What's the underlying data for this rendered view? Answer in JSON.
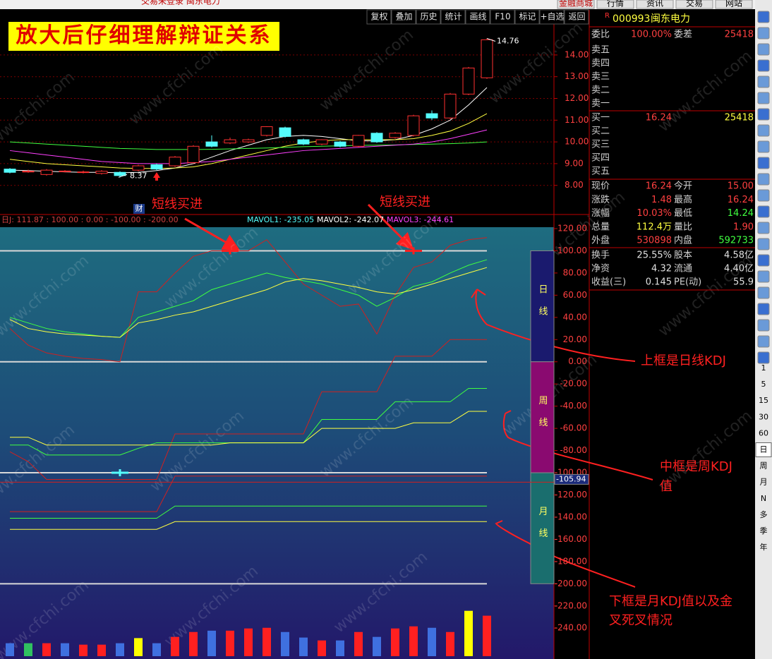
{
  "window_title": "交易未登录  闽东电力",
  "top_menu": [
    "金融商城",
    "行情",
    "资讯",
    "交易",
    "网站"
  ],
  "toolbar": [
    "复权",
    "叠加",
    "历史",
    "统计",
    "画线",
    "F10",
    "标记",
    "+自选",
    "返回"
  ],
  "banner": "放大后仔细理解辩证关系",
  "watermark": "www.cfchi.com",
  "price_chart": {
    "type": "candlestick",
    "ylim": [
      6.79,
      15.36
    ],
    "yticks": [
      {
        "value": 14,
        "label": "14.00"
      },
      {
        "value": 13,
        "label": "13.00"
      },
      {
        "value": 12,
        "label": "12.00"
      },
      {
        "value": 11,
        "label": "11.00"
      },
      {
        "value": 10,
        "label": "10.00"
      },
      {
        "value": 9,
        "label": "9.00"
      },
      {
        "value": 8,
        "label": "8.00"
      }
    ],
    "grid": true,
    "up_color": "#ff3030",
    "down_color": "#54fcfc",
    "candles": [
      {
        "open": 8.75,
        "close": 8.6,
        "high": 8.8,
        "low": 8.55
      },
      {
        "open": 8.65,
        "close": 8.65,
        "high": 8.72,
        "low": 8.58
      },
      {
        "open": 8.5,
        "close": 8.7,
        "high": 8.75,
        "low": 8.45
      },
      {
        "open": 8.65,
        "close": 8.66,
        "high": 8.7,
        "low": 8.6
      },
      {
        "open": 8.6,
        "close": 8.62,
        "high": 8.68,
        "low": 8.55
      },
      {
        "open": 8.55,
        "close": 8.65,
        "high": 8.7,
        "low": 8.5
      },
      {
        "open": 8.6,
        "close": 8.45,
        "high": 8.65,
        "low": 8.37
      },
      {
        "open": 8.7,
        "close": 8.9,
        "high": 8.95,
        "low": 8.65
      },
      {
        "open": 8.95,
        "close": 8.75,
        "high": 9.0,
        "low": 8.7
      },
      {
        "open": 8.9,
        "close": 9.3,
        "high": 9.35,
        "low": 8.85
      },
      {
        "open": 9.05,
        "close": 9.8,
        "high": 9.85,
        "low": 9.0
      },
      {
        "open": 10.0,
        "close": 9.8,
        "high": 10.3,
        "low": 9.75
      },
      {
        "open": 9.95,
        "close": 10.1,
        "high": 10.2,
        "low": 9.9
      },
      {
        "open": 10.0,
        "close": 10.1,
        "high": 10.15,
        "low": 9.95
      },
      {
        "open": 10.3,
        "close": 10.7,
        "high": 10.72,
        "low": 10.25
      },
      {
        "open": 10.65,
        "close": 10.25,
        "high": 10.7,
        "low": 10.2
      },
      {
        "open": 10.1,
        "close": 9.9,
        "high": 10.15,
        "low": 9.85
      },
      {
        "open": 9.9,
        "close": 10.1,
        "high": 10.12,
        "low": 9.85
      },
      {
        "open": 10.0,
        "close": 9.8,
        "high": 10.05,
        "low": 9.75
      },
      {
        "open": 9.8,
        "close": 10.3,
        "high": 10.32,
        "low": 9.75
      },
      {
        "open": 10.4,
        "close": 10.0,
        "high": 10.45,
        "low": 9.95
      },
      {
        "open": 10.2,
        "close": 10.4,
        "high": 10.45,
        "low": 10.15
      },
      {
        "open": 10.3,
        "close": 11.2,
        "high": 11.25,
        "low": 10.25
      },
      {
        "open": 11.3,
        "close": 11.1,
        "high": 11.45,
        "low": 11.0
      },
      {
        "open": 11.1,
        "close": 12.2,
        "high": 12.25,
        "low": 11.05
      },
      {
        "open": 12.2,
        "close": 13.4,
        "high": 13.45,
        "low": 12.15
      },
      {
        "open": 12.95,
        "close": 14.7,
        "high": 14.76,
        "low": 12.9
      }
    ],
    "ma": [
      {
        "color": "#ffffff",
        "values": [
          8.7,
          8.68,
          8.65,
          8.62,
          8.6,
          8.6,
          8.58,
          8.6,
          8.68,
          8.8,
          9.0,
          9.3,
          9.6,
          9.85,
          10.1,
          10.25,
          10.3,
          10.25,
          10.15,
          10.05,
          10.05,
          10.1,
          10.3,
          10.6,
          11.0,
          11.7,
          12.5
        ]
      },
      {
        "color": "#ffff40",
        "values": [
          9.2,
          9.1,
          9.0,
          8.95,
          8.9,
          8.85,
          8.8,
          8.78,
          8.78,
          8.8,
          8.85,
          9.0,
          9.2,
          9.4,
          9.6,
          9.8,
          9.95,
          10.05,
          10.1,
          10.1,
          10.1,
          10.1,
          10.15,
          10.3,
          10.5,
          10.85,
          11.3
        ]
      },
      {
        "color": "#40ff40",
        "values": [
          10.0,
          9.95,
          9.9,
          9.85,
          9.8,
          9.75,
          9.7,
          9.68,
          9.65,
          9.65,
          9.65,
          9.66,
          9.68,
          9.7,
          9.72,
          9.75,
          9.78,
          9.8,
          9.82,
          9.84,
          9.85,
          9.86,
          9.88,
          9.9,
          9.92,
          9.95,
          10.0
        ]
      },
      {
        "color": "#ff40ff",
        "values": [
          9.6,
          9.5,
          9.4,
          9.3,
          9.2,
          9.1,
          9.05,
          9.0,
          9.0,
          9.0,
          9.05,
          9.1,
          9.2,
          9.3,
          9.4,
          9.5,
          9.6,
          9.65,
          9.7,
          9.75,
          9.8,
          9.85,
          9.9,
          10.0,
          10.15,
          10.35,
          10.55
        ]
      }
    ],
    "high_marker": {
      "index": 26,
      "value": 14.76
    },
    "low_marker": {
      "index": 6,
      "value": 8.37
    },
    "finance_marker": "财"
  },
  "indicator_chart": {
    "type": "kdj",
    "ylim": [
      -265.28,
      132.08
    ],
    "yticks": [
      {
        "value": 120,
        "label": "120.00"
      },
      {
        "value": 100,
        "label": "100.00"
      },
      {
        "value": 80,
        "label": "80.00"
      },
      {
        "value": 60,
        "label": "60.00"
      },
      {
        "value": 40,
        "label": "40.00"
      },
      {
        "value": 20,
        "label": "20.00"
      },
      {
        "value": 0,
        "label": "0.00"
      },
      {
        "value": -20,
        "label": "-20.00"
      },
      {
        "value": -40,
        "label": "-40.00"
      },
      {
        "value": -60,
        "label": "-60.00"
      },
      {
        "value": -80,
        "label": "-80.00"
      },
      {
        "value": -100,
        "label": "-100.00"
      },
      {
        "value": -120,
        "label": "-120.00"
      },
      {
        "value": -140,
        "label": "-140.00"
      },
      {
        "value": -160,
        "label": "-160.00"
      },
      {
        "value": -180,
        "label": "-180.00"
      },
      {
        "value": -200,
        "label": "-200.00"
      },
      {
        "value": -220,
        "label": "-220.00"
      },
      {
        "value": -240,
        "label": "-240.00"
      }
    ],
    "reference_lines": [
      100,
      0,
      -100,
      -200
    ],
    "current_value": -105.94,
    "legend": "日J: 111.87 : 100.00 : 0.00 : -100.00 : -200.00",
    "mavol": [
      {
        "label": "MAVOL1: -235.05",
        "color": "#54fcfc"
      },
      {
        "label": "MAVOL2: -242.07",
        "color": "#ffffff"
      },
      {
        "label": "MAVOL3: -244.61",
        "color": "#ff40ff"
      }
    ],
    "frames": [
      {
        "label": "日线",
        "color": "#1a1a6e"
      },
      {
        "label": "周线",
        "color": "#8a0a70"
      },
      {
        "label": "月线",
        "color": "#1a6e6e"
      }
    ],
    "series": [
      {
        "color": "#d02020",
        "values": [
          30,
          15,
          8,
          5,
          3,
          2,
          0,
          63,
          63,
          80,
          95,
          100,
          100,
          100,
          110,
          90,
          70,
          60,
          50,
          52,
          25,
          60,
          85,
          90,
          105,
          110,
          111.87
        ]
      },
      {
        "color": "#40ff40",
        "values": [
          40,
          35,
          30,
          27,
          25,
          23,
          22,
          40,
          45,
          50,
          55,
          65,
          70,
          75,
          80,
          76,
          73,
          70,
          65,
          60,
          50,
          58,
          68,
          72,
          80,
          87,
          92
        ]
      },
      {
        "color": "#ffff40",
        "values": [
          38,
          30,
          27,
          25,
          24,
          23,
          22,
          35,
          38,
          42,
          45,
          50,
          55,
          60,
          65,
          72,
          75,
          73,
          70,
          67,
          63,
          61,
          65,
          70,
          75,
          80,
          85
        ]
      },
      {
        "color": "#d02020",
        "values": [
          -81,
          -90,
          -106,
          -106,
          -106,
          -106,
          -106,
          -106,
          -106,
          -65,
          -65,
          -65,
          -65,
          -65,
          -65,
          -65,
          -65,
          -27,
          -27,
          -27,
          -27,
          5,
          5,
          5,
          20,
          20,
          20
        ]
      },
      {
        "color": "#40ff40",
        "values": [
          -75,
          -75,
          -84,
          -84,
          -84,
          -84,
          -84,
          -78,
          -73,
          -73,
          -73,
          -73,
          -73,
          -73,
          -73,
          -73,
          -73,
          -52,
          -52,
          -52,
          -52,
          -36,
          -36,
          -36,
          -36,
          -24,
          -24
        ]
      },
      {
        "color": "#ffff40",
        "values": [
          -68,
          -68,
          -75,
          -75,
          -75,
          -75,
          -75,
          -75,
          -75,
          -75,
          -75,
          -75,
          -73,
          -73,
          -73,
          -73,
          -73,
          -60,
          -60,
          -60,
          -60,
          -60,
          -55,
          -55,
          -55,
          -44.7,
          -44.7
        ]
      },
      {
        "color": "#d02020",
        "values": [
          -135,
          -135,
          -135,
          -135,
          -135,
          -135,
          -135,
          -135,
          -135,
          -103,
          -103,
          -103,
          -103,
          -103,
          -103,
          -103,
          -103,
          -103,
          -103,
          -103,
          -103,
          -103,
          -103,
          -103,
          -103,
          -103,
          -103
        ]
      },
      {
        "color": "#40ff40",
        "values": [
          -141,
          -141,
          -141,
          -141,
          -141,
          -141,
          -141,
          -141,
          -141,
          -130,
          -130,
          -130,
          -130,
          -130,
          -130,
          -130,
          -130,
          -130,
          -130,
          -130,
          -130,
          -130,
          -130,
          -130,
          -130,
          -130,
          -130
        ]
      },
      {
        "color": "#ffff40",
        "values": [
          -151,
          -151,
          -151,
          -151,
          -151,
          -151,
          -151,
          -151,
          -151,
          -144,
          -144,
          -144,
          -144,
          -144,
          -144,
          -144,
          -144,
          -144,
          -144,
          -144,
          -144,
          -144,
          -144,
          -144,
          -144,
          -144,
          -144
        ]
      }
    ],
    "signals": [
      {
        "index": 12,
        "value": 100,
        "color": "#ff2020"
      },
      {
        "index": 22,
        "value": 100,
        "color": "#ff2020"
      },
      {
        "index": 6,
        "value": -100,
        "color": "#54fcfc"
      }
    ],
    "volume": {
      "values": [
        -253.6,
        -253.6,
        -253.6,
        -253.6,
        -254.9,
        -254.9,
        -253.6,
        -249,
        -253.6,
        -247.9,
        -243.5,
        -242.3,
        -242.3,
        -240.3,
        -239.7,
        -243.5,
        -248.5,
        -251.1,
        -251.1,
        -243.5,
        -247.9,
        -240.3,
        -238.4,
        -239.7,
        -243.5,
        -224.4,
        -228.8
      ],
      "colors": [
        "#3f70e0",
        "#30c060",
        "#ff2020",
        "#3f70e0",
        "#ff2020",
        "#ff2020",
        "#3f70e0",
        "#ffff00",
        "#3f70e0",
        "#ff2020",
        "#ff2020",
        "#3f70e0",
        "#ff2020",
        "#ff2020",
        "#ff2020",
        "#3f70e0",
        "#3f70e0",
        "#ff2020",
        "#3f70e0",
        "#ff2020",
        "#3f70e0",
        "#ff2020",
        "#ff2020",
        "#3f70e0",
        "#ff2020",
        "#ffff00",
        "#ff2020"
      ]
    }
  },
  "annotations": {
    "buy_signal": [
      "短线买进",
      "短线买进"
    ],
    "daily_note": [
      "上框是日线KDJ"
    ],
    "weekly_note": [
      "中框是周KDJ",
      "值"
    ],
    "monthly_note": [
      "下框是月KDJ值以及金",
      "叉死叉情况"
    ]
  },
  "quote": {
    "flag": "R",
    "code": "000993",
    "name": "闽东电力",
    "weibi": [
      "委比",
      "100.00%",
      "委差",
      "25418"
    ],
    "asks": [
      [
        "卖五"
      ],
      [
        "卖四"
      ],
      [
        "卖三"
      ],
      [
        "卖二"
      ],
      [
        "卖一"
      ]
    ],
    "bids": [
      [
        "买一",
        "16.24",
        "25418"
      ],
      [
        "买二"
      ],
      [
        "买三"
      ],
      [
        "买四"
      ],
      [
        "买五"
      ]
    ],
    "stats": [
      [
        "现价",
        "16.24",
        "今开",
        "15.00"
      ],
      [
        "涨跌",
        "1.48",
        "最高",
        "16.24"
      ],
      [
        "涨幅",
        "10.03%",
        "最低",
        "14.24"
      ],
      [
        "总量",
        "112.4万",
        "量比",
        "1.90"
      ],
      [
        "外盘",
        "530898",
        "内盘",
        "592733"
      ]
    ],
    "fundamentals": [
      [
        "换手",
        "25.55%",
        "股本",
        "4.58亿"
      ],
      [
        "净资",
        "4.32",
        "流通",
        "4.40亿"
      ],
      [
        "收益(三)",
        "0.145",
        "PE(动)",
        "55.9"
      ]
    ]
  },
  "side_toolbar": [
    "1",
    "5",
    "15",
    "30",
    "60",
    "日",
    "周",
    "月",
    "N",
    "多",
    "季",
    "年"
  ]
}
